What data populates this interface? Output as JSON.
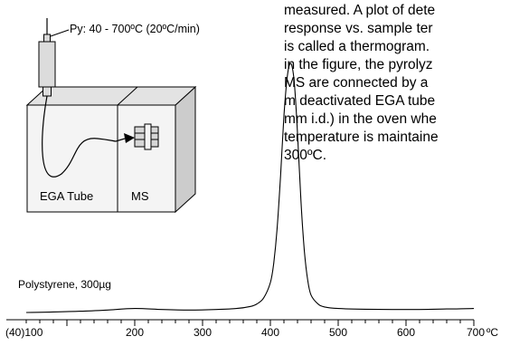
{
  "description_lines": [
    "measured. A plot of dete",
    "response vs. sample ter",
    "is called a thermogram.",
    "in the figure, the pyrolyz",
    "MS are connected by a",
    "m deactivated EGA tube",
    "mm i.d.) in the oven whe",
    "temperature is maintaine",
    "300ºC."
  ],
  "inset": {
    "pyrolyzer_label": "Py: 40 - 700ºC (20ºC/min)",
    "ega_tube_label": "EGA Tube",
    "ms_label": "MS"
  },
  "chart_data": {
    "type": "line",
    "title": "",
    "xlabel": "ºC",
    "ylabel": "",
    "xlim": [
      40,
      700
    ],
    "x_tick_labels": [
      "(40)100",
      "200",
      "300",
      "400",
      "500",
      "600",
      "700"
    ],
    "x_ticks": [
      100,
      200,
      300,
      400,
      500,
      600,
      700
    ],
    "x_minor_step": 20,
    "grid": false,
    "series": [
      {
        "name": "Polystyrene, 300µg",
        "x": [
          40,
          80,
          120,
          160,
          200,
          240,
          280,
          320,
          350,
          370,
          380,
          390,
          400,
          405,
          410,
          415,
          420,
          425,
          430,
          435,
          440,
          445,
          450,
          455,
          460,
          470,
          480,
          500,
          540,
          600,
          660,
          700
        ],
        "y": [
          0.0,
          0.002,
          0.005,
          0.01,
          0.016,
          0.012,
          0.01,
          0.012,
          0.016,
          0.024,
          0.034,
          0.058,
          0.12,
          0.2,
          0.34,
          0.55,
          0.79,
          0.95,
          1.0,
          0.93,
          0.72,
          0.45,
          0.25,
          0.13,
          0.07,
          0.035,
          0.022,
          0.016,
          0.013,
          0.012,
          0.014,
          0.016
        ]
      }
    ]
  }
}
